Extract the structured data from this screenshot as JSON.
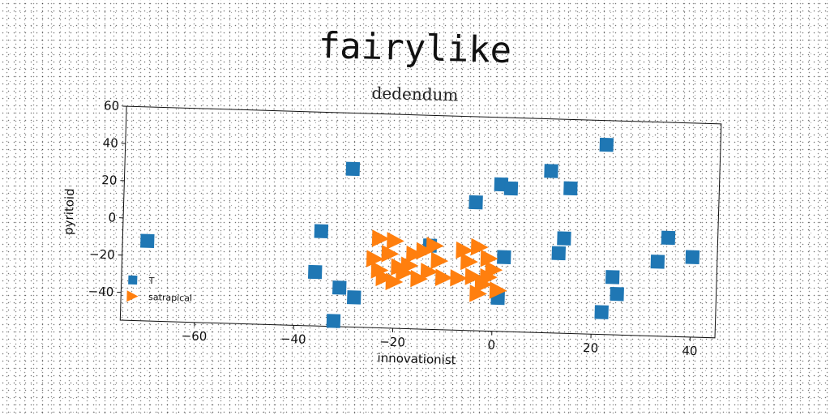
{
  "chart_data": {
    "type": "scatter",
    "title": "fairylike",
    "subtitle": "dedendum",
    "xlabel": "innovationist",
    "ylabel": "pyritoid",
    "xlim": [
      -75,
      45
    ],
    "ylim": [
      -55,
      60
    ],
    "xticks": [
      -60,
      -40,
      -20,
      0,
      20,
      40
    ],
    "yticks": [
      -40,
      -20,
      0,
      20,
      40,
      60
    ],
    "grid": false,
    "legend_position": "lower-left",
    "series": [
      {
        "name": "T",
        "marker": "square",
        "color": "#1f77b4",
        "points": [
          [
            -70,
            -12
          ],
          [
            -35,
            -4
          ],
          [
            -29,
            30
          ],
          [
            -36,
            -26
          ],
          [
            -31,
            -34
          ],
          [
            -28,
            -39
          ],
          [
            -32,
            -52
          ],
          [
            -4,
            14
          ],
          [
            1,
            24
          ],
          [
            3,
            22
          ],
          [
            2,
            -15
          ],
          [
            1,
            -37
          ],
          [
            11,
            32
          ],
          [
            15,
            23
          ],
          [
            14,
            -4
          ],
          [
            13,
            -12
          ],
          [
            22,
            47
          ],
          [
            24,
            -24
          ],
          [
            25,
            -33
          ],
          [
            22,
            -43
          ],
          [
            35,
            -2
          ],
          [
            33,
            -15
          ],
          [
            40,
            -12
          ],
          [
            -13,
            -10
          ]
        ]
      },
      {
        "name": "satrapical",
        "marker": "triangle-right",
        "color": "#ff7f0e",
        "points": [
          [
            -23,
            -7
          ],
          [
            -20,
            -8
          ],
          [
            -24,
            -18
          ],
          [
            -21,
            -15
          ],
          [
            -19,
            -22
          ],
          [
            -22,
            -28
          ],
          [
            -18,
            -25
          ],
          [
            -16,
            -15
          ],
          [
            -17,
            -21
          ],
          [
            -14,
            -13
          ],
          [
            -13,
            -24
          ],
          [
            -12,
            -10
          ],
          [
            -11,
            -18
          ],
          [
            -15,
            -28
          ],
          [
            -20,
            -30
          ],
          [
            -6,
            -12
          ],
          [
            -5,
            -18
          ],
          [
            -3,
            -10
          ],
          [
            -4,
            -26
          ],
          [
            -2,
            -30
          ],
          [
            -1,
            -16
          ],
          [
            0,
            -22
          ],
          [
            1,
            -33
          ],
          [
            -3,
            -35
          ],
          [
            -7,
            -27
          ],
          [
            -23,
            -24
          ],
          [
            -10,
            -27
          ],
          [
            -1,
            -26
          ]
        ]
      }
    ]
  }
}
